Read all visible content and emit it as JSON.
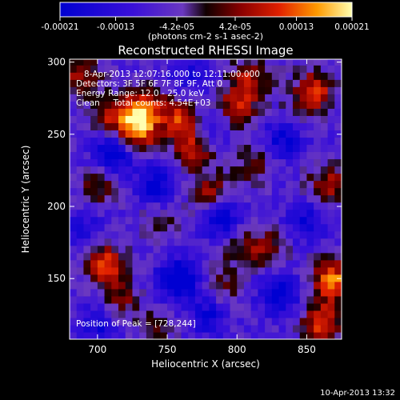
{
  "chart_data": {
    "type": "heatmap",
    "title": "Reconstructed RHESSI Image",
    "xlabel": "Heliocentric X (arcsec)",
    "ylabel": "Heliocentric Y (arcsec)",
    "xlim": [
      680,
      875
    ],
    "ylim": [
      108,
      302
    ],
    "x_ticks": [
      "700",
      "750",
      "800",
      "850"
    ],
    "y_ticks": [
      "150",
      "200",
      "250",
      "300"
    ],
    "colorbar": {
      "ticks": [
        "-0.00021",
        "-0.00013",
        "-4.2e-05",
        "4.2e-05",
        "0.00013",
        "0.00021"
      ],
      "range": [
        -0.00021,
        0.00021
      ],
      "unit": "(photons cm-2 s-1 asec-2)"
    },
    "annotations": [
      "8-Apr-2013 12:07:16.000 to 12:11:00.000",
      "Detectors: 3F 5F 6F 7F 8F 9F, Att 0",
      "Energy Range: 12.0 - 25.0 keV",
      "Clean     Total counts: 4.54E+03"
    ],
    "peak_label": "Position of Peak = [728,244]",
    "peak": [
      728,
      244
    ],
    "grid_step": 5,
    "sources": [
      {
        "x": 728,
        "y": 252,
        "intensity": 1.0
      },
      {
        "x": 735,
        "y": 270,
        "intensity": 0.8
      },
      {
        "x": 712,
        "y": 262,
        "intensity": 0.6
      },
      {
        "x": 760,
        "y": 260,
        "intensity": 0.75
      },
      {
        "x": 770,
        "y": 240,
        "intensity": 0.65
      },
      {
        "x": 800,
        "y": 270,
        "intensity": 0.7
      },
      {
        "x": 810,
        "y": 290,
        "intensity": 0.6
      },
      {
        "x": 855,
        "y": 280,
        "intensity": 0.75
      },
      {
        "x": 865,
        "y": 215,
        "intensity": 0.6
      },
      {
        "x": 868,
        "y": 150,
        "intensity": 0.95
      },
      {
        "x": 860,
        "y": 120,
        "intensity": 0.8
      },
      {
        "x": 840,
        "y": 260,
        "intensity": 0.4
      },
      {
        "x": 705,
        "y": 160,
        "intensity": 0.8
      },
      {
        "x": 715,
        "y": 135,
        "intensity": 0.5
      },
      {
        "x": 700,
        "y": 215,
        "intensity": 0.45
      },
      {
        "x": 780,
        "y": 210,
        "intensity": 0.55
      },
      {
        "x": 800,
        "y": 175,
        "intensity": 0.45
      },
      {
        "x": 822,
        "y": 170,
        "intensity": 0.5
      },
      {
        "x": 790,
        "y": 145,
        "intensity": 0.4
      },
      {
        "x": 810,
        "y": 230,
        "intensity": 0.4
      },
      {
        "x": 690,
        "y": 290,
        "intensity": 0.6
      },
      {
        "x": 745,
        "y": 190,
        "intensity": 0.3
      },
      {
        "x": 740,
        "y": 115,
        "intensity": 0.3
      },
      {
        "x": 712,
        "y": 238,
        "intensity": -0.85
      },
      {
        "x": 758,
        "y": 150,
        "intensity": -0.9
      },
      {
        "x": 790,
        "y": 190,
        "intensity": -0.7
      },
      {
        "x": 835,
        "y": 250,
        "intensity": -0.75
      },
      {
        "x": 742,
        "y": 215,
        "intensity": -0.6
      },
      {
        "x": 700,
        "y": 120,
        "intensity": -0.5
      },
      {
        "x": 830,
        "y": 140,
        "intensity": -0.7
      },
      {
        "x": 780,
        "y": 125,
        "intensity": -0.5
      },
      {
        "x": 780,
        "y": 255,
        "intensity": -0.45
      },
      {
        "x": 850,
        "y": 190,
        "intensity": -0.55
      },
      {
        "x": 690,
        "y": 185,
        "intensity": -0.4
      },
      {
        "x": 765,
        "y": 290,
        "intensity": -0.35
      }
    ]
  },
  "footer_timestamp": "10-Apr-2013 13:32"
}
